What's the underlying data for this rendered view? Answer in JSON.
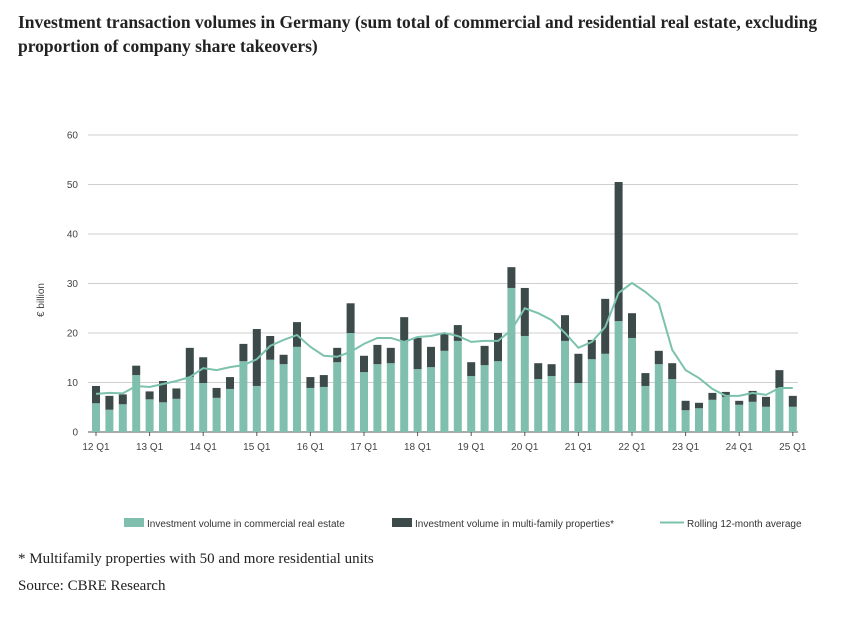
{
  "title": "Investment transaction volumes in Germany (sum total of commercial and residential real estate, excluding proportion of company share takeovers)",
  "footnote": "* Multifamily properties with 50 and more residential units",
  "source": "Source: CBRE Research",
  "colors": {
    "commercial": "#80bfad",
    "multifamily": "#3c4a4a",
    "average": "#7cc2ad",
    "grid": "#cfcfcf"
  },
  "chart_data": {
    "type": "bar",
    "stacked": true,
    "ylabel": "€ billion",
    "ylim": [
      0,
      60
    ],
    "yticks": [
      0,
      10,
      20,
      30,
      40,
      50,
      60
    ],
    "grid": true,
    "legend_placement": "bottom",
    "xtick_labels": [
      "12 Q1",
      "13 Q1",
      "14 Q1",
      "15 Q1",
      "16 Q1",
      "17 Q1",
      "18 Q1",
      "19 Q1",
      "20 Q1",
      "21 Q1",
      "22 Q1",
      "23 Q1",
      "24 Q1",
      "25 Q1"
    ],
    "categories": [
      "12Q1",
      "12Q2",
      "12Q3",
      "12Q4",
      "13Q1",
      "13Q2",
      "13Q3",
      "13Q4",
      "14Q1",
      "14Q2",
      "14Q3",
      "14Q4",
      "15Q1",
      "15Q2",
      "15Q3",
      "15Q4",
      "16Q1",
      "16Q2",
      "16Q3",
      "16Q4",
      "17Q1",
      "17Q2",
      "17Q3",
      "17Q4",
      "18Q1",
      "18Q2",
      "18Q3",
      "18Q4",
      "19Q1",
      "19Q2",
      "19Q3",
      "19Q4",
      "20Q1",
      "20Q2",
      "20Q3",
      "20Q4",
      "21Q1",
      "21Q2",
      "21Q3",
      "21Q4",
      "22Q1",
      "22Q2",
      "22Q3",
      "22Q4",
      "23Q1",
      "23Q2",
      "23Q3",
      "23Q4",
      "24Q1",
      "24Q2",
      "24Q3",
      "24Q4",
      "25Q1"
    ],
    "series": [
      {
        "name": "Investment volume in commercial real estate",
        "kind": "bar",
        "values": [
          5.8,
          4.5,
          5.6,
          11.5,
          6.6,
          6.0,
          6.7,
          11.1,
          9.9,
          6.9,
          8.7,
          14.3,
          9.3,
          14.6,
          13.7,
          17.2,
          8.9,
          9.1,
          14.1,
          20.0,
          12.1,
          13.7,
          13.9,
          18.2,
          12.7,
          13.1,
          16.4,
          18.4,
          11.3,
          13.5,
          14.3,
          29.1,
          19.4,
          10.7,
          11.3,
          18.4,
          9.9,
          14.7,
          15.8,
          22.4,
          19.0,
          9.3,
          13.7,
          10.7,
          4.4,
          4.8,
          6.5,
          7.1,
          5.5,
          6.1,
          5.1,
          8.9,
          5.1
        ]
      },
      {
        "name": "Investment volume in multi-family properties*",
        "kind": "bar",
        "values": [
          3.5,
          2.8,
          2.0,
          1.9,
          1.6,
          4.3,
          2.1,
          5.9,
          5.2,
          2.0,
          2.4,
          3.5,
          11.5,
          4.8,
          1.9,
          5.0,
          2.2,
          2.4,
          2.9,
          6.0,
          3.3,
          3.9,
          3.1,
          5.0,
          6.3,
          4.1,
          3.6,
          3.2,
          2.8,
          3.9,
          5.7,
          4.2,
          9.7,
          3.2,
          2.4,
          5.2,
          5.9,
          3.9,
          11.1,
          28.1,
          5.0,
          2.6,
          2.7,
          3.2,
          1.9,
          1.1,
          1.4,
          1.0,
          0.8,
          2.2,
          2.0,
          3.6,
          2.2
        ]
      },
      {
        "name": "Rolling 12-month average",
        "kind": "line",
        "values": [
          7.7,
          7.9,
          7.8,
          9.3,
          9.1,
          9.7,
          10.3,
          11.1,
          12.9,
          12.5,
          13.1,
          13.5,
          14.7,
          17.4,
          18.6,
          19.6,
          17.2,
          15.4,
          15.2,
          16.2,
          17.8,
          19.0,
          19.0,
          18.2,
          19.2,
          19.4,
          20.0,
          19.4,
          18.2,
          18.4,
          18.4,
          20.6,
          25.0,
          24.0,
          22.6,
          20.0,
          17.0,
          18.2,
          21.2,
          28.1,
          30.1,
          28.3,
          26.0,
          16.6,
          12.5,
          10.9,
          8.7,
          7.3,
          7.3,
          7.9,
          7.5,
          8.9,
          8.9
        ]
      }
    ]
  }
}
